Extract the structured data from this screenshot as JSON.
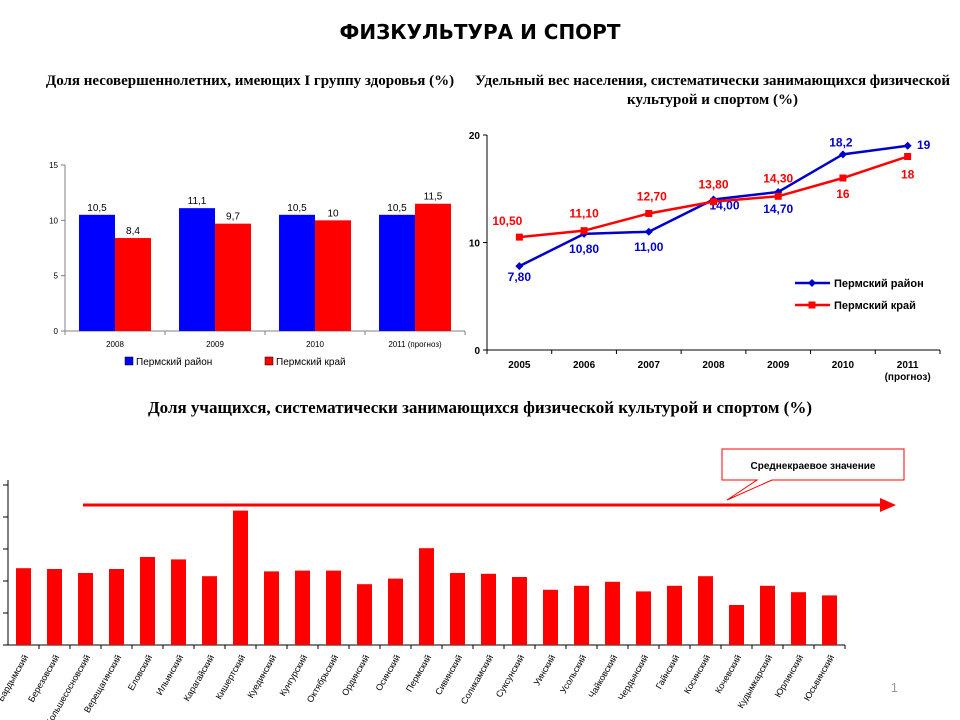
{
  "slide": {
    "title": "ФИЗКУЛЬТУРА И СПОРТ",
    "page_number": "1"
  },
  "chart_data": [
    {
      "type": "bar",
      "title": "Доля несовершеннолетних, имеющих I группу здоровья (%)",
      "categories": [
        "2008",
        "2009",
        "2010",
        "2011 (прогноз)"
      ],
      "series": [
        {
          "name": "Пермский район",
          "values": [
            10.5,
            11.1,
            10.5,
            10.5
          ],
          "labels": [
            "10,5",
            "11,1",
            "10,5",
            "10,5"
          ],
          "color": "#0000FF"
        },
        {
          "name": "Пермский край",
          "values": [
            8.4,
            9.7,
            10,
            11.5
          ],
          "labels": [
            "8,4",
            "9,7",
            "10",
            "11,5"
          ],
          "color": "#FF0000"
        }
      ],
      "ylim": [
        0,
        15
      ],
      "yticks": [
        "0",
        "5",
        "10",
        "15"
      ],
      "legend": "bottom"
    },
    {
      "type": "line",
      "title": "Удельный вес населения, систематически занимающихся физической культурой и спортом (%)",
      "categories": [
        "2005",
        "2006",
        "2007",
        "2008",
        "2009",
        "2010",
        "2011 (прогноз)"
      ],
      "category_labels": [
        "2005",
        "2006",
        "2007",
        "2008",
        "2009",
        "2010",
        "2011"
      ],
      "category_sublabel": "(прогноз)",
      "series": [
        {
          "name": "Пермский район",
          "values": [
            7.8,
            10.8,
            11.0,
            14.0,
            14.7,
            18.2,
            19
          ],
          "labels": [
            "7,80",
            "10,80",
            "11,00",
            "14,00",
            "14,70",
            "18,2",
            "19"
          ],
          "color": "#0000CC"
        },
        {
          "name": "Пермский край",
          "values": [
            10.5,
            11.1,
            12.7,
            13.8,
            14.3,
            16,
            18
          ],
          "labels": [
            "10,50",
            "11,10",
            "12,70",
            "13,80",
            "14,30",
            "16",
            "18"
          ],
          "color": "#FF0000"
        }
      ],
      "ylim": [
        0,
        20
      ],
      "yticks": [
        "0",
        "10",
        "20"
      ],
      "legend": "right"
    },
    {
      "type": "bar",
      "title": "Доля учащихся, систематически занимающихся физической культурой и спортом (%)",
      "categories": [
        "Бардымский",
        "Березовский",
        "Большесосновский",
        "Верещагинский",
        "Еловский",
        "Ильинский",
        "Карагайский",
        "Кишертский",
        "Куединский",
        "Кунгурский",
        "Октябрьский",
        "Ординский",
        "Осинский",
        "Пермский",
        "Сивинский",
        "Соликамский",
        "Суксунский",
        "Уинский",
        "Усольский",
        "Чайковский",
        "Чердынский",
        "Гайнский",
        "Косинский",
        "Кочевский",
        "Кудымкарский",
        "Юрлинский",
        "Юсьвинский"
      ],
      "values": [
        48,
        47.5,
        45,
        47.5,
        55,
        53.5,
        43,
        84,
        46,
        46.5,
        46.5,
        38,
        41.5,
        60.5,
        45,
        44.5,
        42.5,
        34.5,
        37,
        39.5,
        33.5,
        37,
        43,
        25,
        37,
        33,
        31
      ],
      "color": "#FF0000",
      "ylim": [
        0,
        100
      ],
      "annotation": "Среднекраевое значение"
    }
  ]
}
